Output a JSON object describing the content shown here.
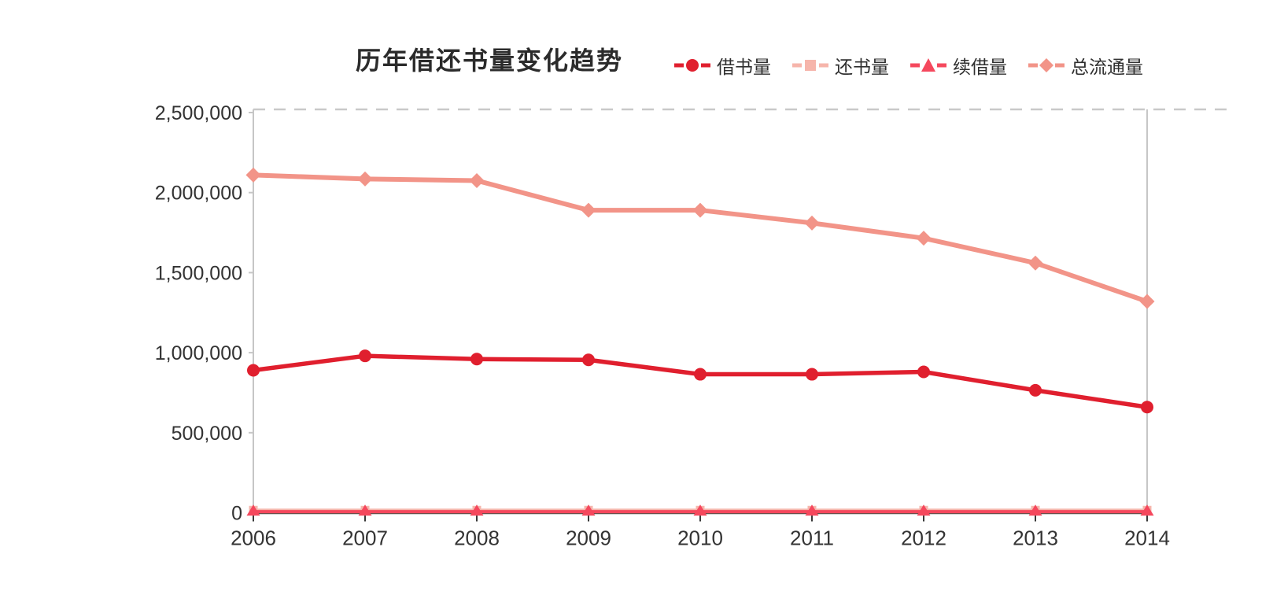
{
  "page": {
    "background": "#ffffff"
  },
  "chart_data": {
    "type": "line",
    "title": "历年借还书量变化趋势",
    "x_labels": [
      "2006",
      "2007",
      "2008",
      "2009",
      "2010",
      "2011",
      "2012",
      "2013",
      "2014"
    ],
    "y_tick_labels": [
      "0",
      "500,000",
      "1,000,000",
      "1,500,000",
      "2,000,000",
      "2,500,000"
    ],
    "y_tick_values": [
      0,
      500000,
      1000000,
      1500000,
      2000000,
      2500000
    ],
    "ylim": [
      0,
      2500000
    ],
    "legend_position": "top-right",
    "grid": {
      "top_boundary_dashed": true,
      "horizontal_gridlines": false
    },
    "colors": {
      "x_axis": "#57514b",
      "y_axis": "#c6c6c6",
      "dashed_top_line": "#c9c9c9",
      "tick_text": "#333333"
    },
    "series": [
      {
        "name": "借书量",
        "marker": "circle",
        "color": "#e01f2e",
        "values": [
          890000,
          980000,
          960000,
          955000,
          865000,
          865000,
          880000,
          765000,
          660000
        ]
      },
      {
        "name": "还书量",
        "marker": "square",
        "color": "#f6b5ab",
        "values": [
          16000,
          16000,
          16000,
          16000,
          16000,
          16000,
          16000,
          16000,
          16000
        ]
      },
      {
        "name": "续借量",
        "marker": "triangle",
        "color": "#f5485d",
        "values": [
          7000,
          7000,
          7000,
          7000,
          7000,
          7000,
          7000,
          7000,
          7000
        ]
      },
      {
        "name": "总流通量",
        "marker": "diamond",
        "color": "#f29488",
        "values": [
          2110000,
          2085000,
          2075000,
          1890000,
          1890000,
          1810000,
          1715000,
          1560000,
          1320000
        ]
      }
    ]
  }
}
